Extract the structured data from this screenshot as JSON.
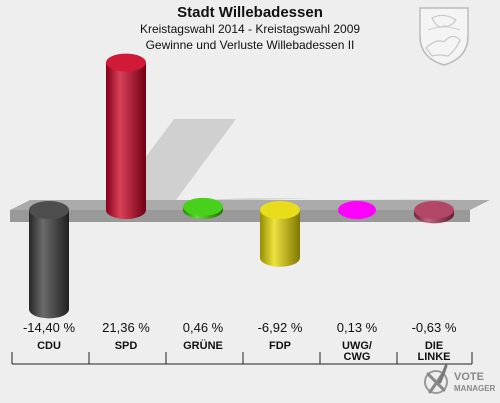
{
  "header": {
    "title": "Stadt Willebadessen",
    "subtitle": "Kreistagswahl 2014 - Kreistagswahl 2009",
    "caption": "Gewinne und Verluste Willebadessen II"
  },
  "brand": {
    "line1": "VOTE",
    "line2": "MANAGER",
    "icon": "checkmark-x-logo"
  },
  "crest": {
    "icon": "coat-of-arms-icon"
  },
  "colors": {
    "background": "#eeeeee",
    "platform": "#aaaaaa",
    "shadow": "#cccccc"
  },
  "chart_data": {
    "type": "bar",
    "title": "Gewinne und Verluste Willebadessen II",
    "categories": [
      "CDU",
      "SPD",
      "GRÜNE",
      "FDP",
      "UWG/\nCWG",
      "DIE\nLINKE"
    ],
    "values": [
      -14.4,
      21.36,
      0.46,
      -6.92,
      0.13,
      -0.63
    ],
    "value_labels": [
      "-14,40 %",
      "21,36 %",
      "0,46 %",
      "-6,92 %",
      "0,13 %",
      "-0,63 %"
    ],
    "colors": [
      "#3a3a3a",
      "#cc0022",
      "#33cc00",
      "#e6d800",
      "#ff00ff",
      "#aa3355"
    ],
    "ylim": [
      -16,
      24
    ],
    "unit": "%"
  }
}
